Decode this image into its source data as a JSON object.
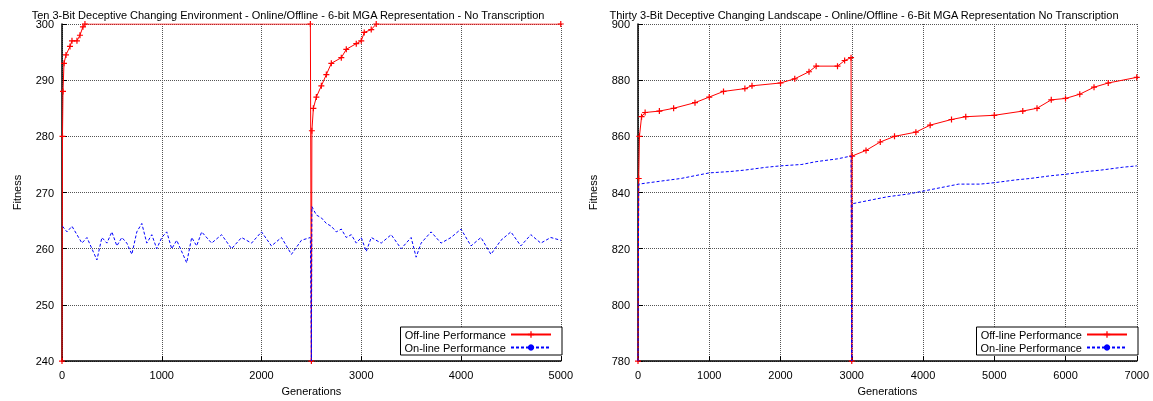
{
  "chart_data": [
    {
      "type": "line",
      "title": "Ten 3-Bit Deceptive Changing Environment - Online/Offline - 6-bit MGA Representation - No Transcription",
      "xlabel": "Generations",
      "ylabel": "Fitness",
      "xlim": [
        0,
        5000
      ],
      "xticks": [
        0,
        1000,
        2000,
        3000,
        4000,
        5000
      ],
      "ylim": [
        240,
        300
      ],
      "yticks": [
        240,
        250,
        260,
        270,
        280,
        290,
        300
      ],
      "grid": true,
      "legend": "bottom right",
      "series": [
        {
          "name": "Off-line Performance",
          "color": "#ff0000",
          "marker": "cross",
          "line_style": "solid",
          "x": [
            0,
            5,
            10,
            20,
            40,
            80,
            100,
            150,
            180,
            210,
            230,
            2490,
            2500,
            2505,
            2520,
            2550,
            2600,
            2650,
            2700,
            2800,
            2850,
            2950,
            3000,
            3030,
            3100,
            3150,
            5000
          ],
          "values": [
            240,
            280,
            288,
            293,
            294.5,
            296,
            297,
            297,
            298,
            299.5,
            300,
            300,
            240,
            281,
            285,
            287,
            289,
            291,
            293,
            294,
            295.5,
            296.5,
            297,
            298.5,
            299,
            300,
            300
          ]
        },
        {
          "name": "On-line Performance",
          "color": "#0000ff",
          "marker": "none",
          "line_style": "dashed",
          "x": [
            5,
            50,
            100,
            150,
            200,
            250,
            300,
            350,
            400,
            450,
            500,
            550,
            600,
            650,
            700,
            750,
            800,
            850,
            900,
            950,
            1000,
            1050,
            1100,
            1150,
            1250,
            1300,
            1350,
            1400,
            1500,
            1600,
            1700,
            1800,
            1900,
            2000,
            2100,
            2200,
            2300,
            2400,
            2490,
            2500,
            2505,
            2550,
            2600,
            2650,
            2700,
            2750,
            2800,
            2850,
            2900,
            2950,
            3000,
            3050,
            3100,
            3200,
            3300,
            3400,
            3500,
            3550,
            3600,
            3700,
            3800,
            3900,
            4000,
            4100,
            4200,
            4300,
            4400,
            4500,
            4600,
            4700,
            4800,
            4900,
            5000
          ],
          "values": [
            264,
            263,
            264,
            262.5,
            261,
            262,
            260,
            258,
            262,
            261,
            263,
            260.5,
            262,
            261,
            259,
            263,
            264.5,
            261,
            262.5,
            260,
            262,
            263,
            260,
            261.5,
            257.5,
            262,
            260.5,
            263,
            261,
            262.5,
            260,
            262,
            261,
            263,
            260.5,
            262,
            259,
            261.5,
            262,
            240,
            267.5,
            266,
            265.5,
            264.5,
            264,
            263,
            263.5,
            262,
            262.5,
            261,
            262,
            259.5,
            262,
            261,
            262.5,
            260,
            262,
            258.5,
            261,
            263,
            261,
            262,
            263.5,
            260.5,
            262,
            259,
            261.5,
            263,
            260.5,
            262.5,
            261,
            262,
            261.5
          ]
        }
      ]
    },
    {
      "type": "line",
      "title": "Thirty 3-Bit Deceptive Changing Landscape - Online/Offline - 6-Bit MGA Representation No Transcription",
      "xlabel": "Generations",
      "ylabel": "Fitness",
      "xlim": [
        0,
        7000
      ],
      "xticks": [
        0,
        1000,
        2000,
        3000,
        4000,
        5000,
        6000,
        7000
      ],
      "ylim": [
        780,
        900
      ],
      "yticks": [
        780,
        800,
        820,
        840,
        860,
        880,
        900
      ],
      "grid": true,
      "legend": "bottom right",
      "series": [
        {
          "name": "Off-line Performance",
          "color": "#ff0000",
          "marker": "cross",
          "line_style": "solid",
          "x": [
            0,
            10,
            20,
            50,
            100,
            300,
            500,
            800,
            1000,
            1200,
            1500,
            1600,
            2000,
            2200,
            2400,
            2500,
            2800,
            2900,
            2990,
            3000,
            3005,
            3200,
            3400,
            3600,
            3900,
            4100,
            4400,
            4600,
            5000,
            5400,
            5600,
            5800,
            6000,
            6200,
            6400,
            6600,
            7000
          ],
          "values": [
            780,
            845,
            860,
            867,
            868.5,
            869,
            870,
            872,
            874,
            876,
            877,
            878,
            879,
            880.5,
            883,
            885,
            885,
            887,
            888,
            780,
            853,
            855,
            858,
            860,
            861.5,
            864,
            866,
            867,
            867.5,
            869,
            870,
            873,
            873.5,
            875,
            877.5,
            879,
            881
          ]
        },
        {
          "name": "On-line Performance",
          "color": "#0000ff",
          "marker": "none",
          "line_style": "dashed",
          "x": [
            0,
            10,
            300,
            600,
            1000,
            1300,
            1500,
            1800,
            2000,
            2300,
            2500,
            2800,
            2990,
            3000,
            3005,
            3300,
            3500,
            3800,
            4000,
            4300,
            4500,
            4800,
            5000,
            5300,
            5500,
            5800,
            6000,
            6300,
            6500,
            6800,
            7000
          ],
          "values": [
            780,
            843,
            844,
            845,
            847,
            847.5,
            848,
            849,
            849.5,
            850,
            851,
            852,
            853,
            780,
            836,
            837.5,
            838.5,
            839.5,
            840.5,
            842,
            843,
            843,
            843.5,
            844.5,
            845,
            846,
            846.5,
            847.5,
            848,
            849,
            849.5
          ]
        }
      ]
    }
  ]
}
